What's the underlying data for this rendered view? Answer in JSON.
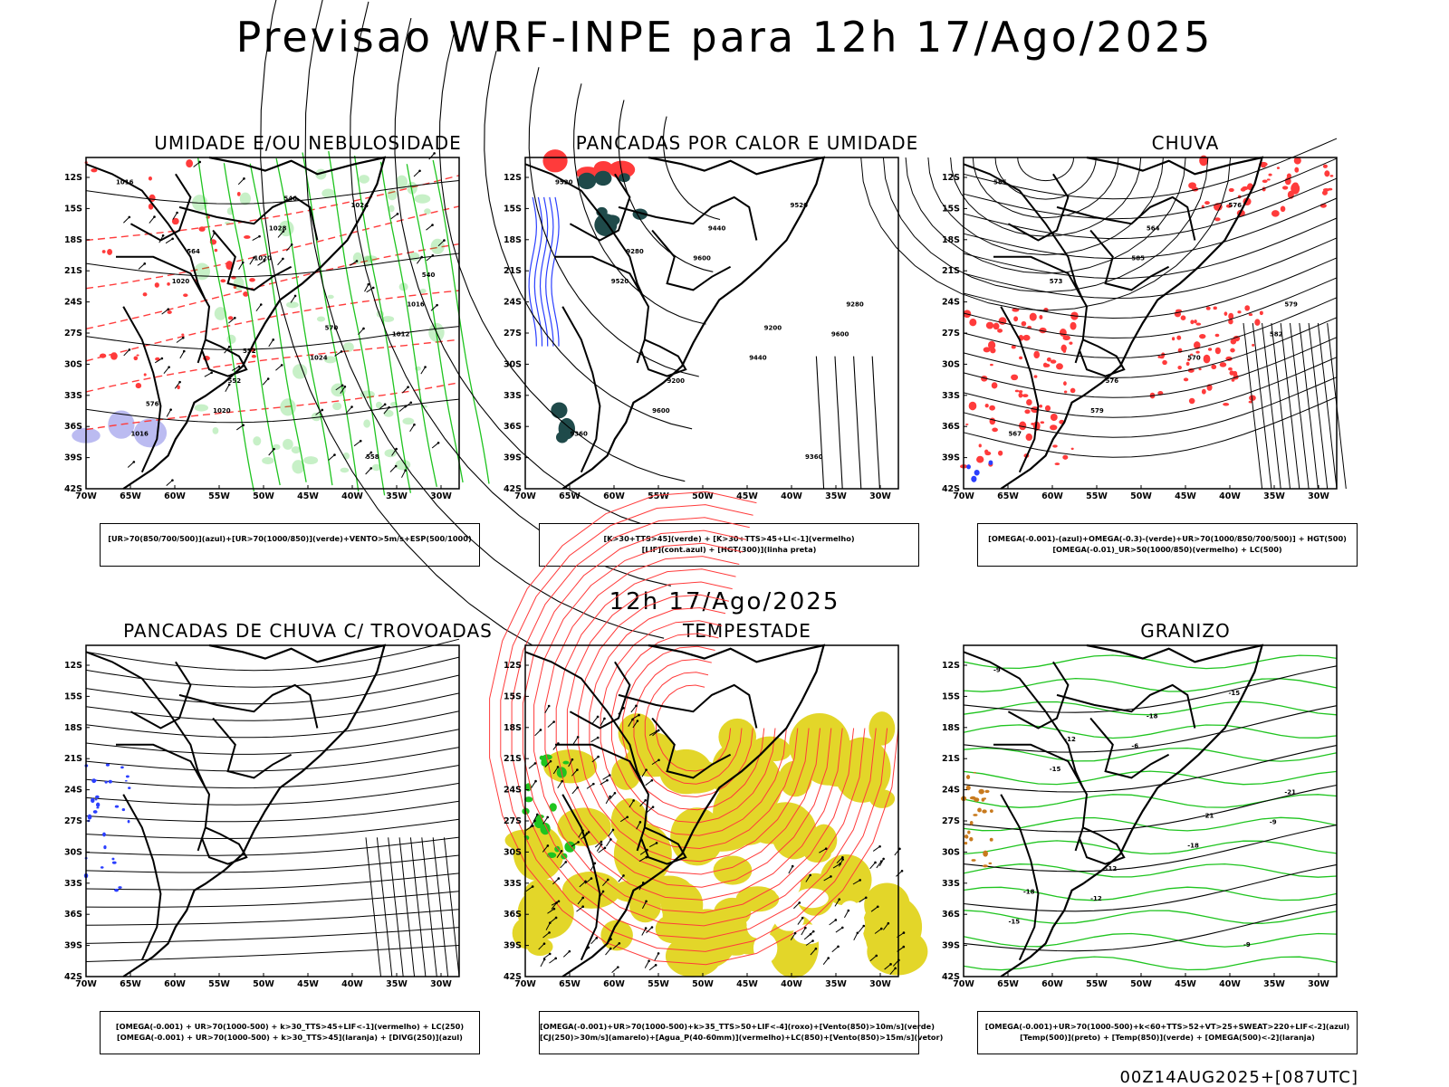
{
  "title": "Previsao WRF-INPE  para 12h 17/Ago/2025",
  "mid_title": "12h 17/Ago/2025",
  "footer": "00Z14AUG2025+[087UTC]",
  "axes": {
    "lat_labels": [
      "12S",
      "15S",
      "18S",
      "21S",
      "24S",
      "27S",
      "30S",
      "33S",
      "36S",
      "39S",
      "42S"
    ],
    "lon_labels": [
      "70W",
      "65W",
      "60W",
      "55W",
      "50W",
      "45W",
      "40W",
      "35W",
      "30W"
    ]
  },
  "colors": {
    "frame": "#000000",
    "green": "#1fc41f",
    "red": "#ff3b3b",
    "blue": "#2b3fff",
    "lavender": "#b4b4f0",
    "yellow": "#e3d629",
    "teal": "#1f4a4a",
    "orange": "#c87a1e"
  },
  "panels": [
    {
      "id": "umidade",
      "title": "UMIDADE E/OU NEBULOSIDADE",
      "legend": [
        "[UR>70(850/700/500)](azul)+[UR>70(1000/850)](verde)+VENTO>5m/s+ESP(500/1000)"
      ],
      "contour_labels": [
        "1016",
        "1020",
        "1012",
        "1020",
        "1024",
        "1020",
        "1024",
        "1016",
        "1028",
        "1016",
        "552",
        "558",
        "564",
        "570",
        "576",
        "546",
        "540",
        "552"
      ]
    },
    {
      "id": "pancadas-calor",
      "title": "PANCADAS POR CALOR E UMIDADE",
      "legend": [
        "[K>30+TTS>45](verde) + [K>30+TTS>45+LI<-1](vermelho)",
        "[LIF](cont.azul) + [HGT(300)](linha preta)"
      ],
      "contour_labels": [
        "9520",
        "9600",
        "9600",
        "9600",
        "9520",
        "9520",
        "9440",
        "9360",
        "9440",
        "9280",
        "9200",
        "9360",
        "9280",
        "9200"
      ]
    },
    {
      "id": "chuva",
      "title": "CHUVA",
      "legend": [
        "[OMEGA(-0.001)-(azul)+OMEGA(-0.3)-(verde)+UR>70(1000/850/700/500)] + HGT(500)",
        "[OMEGA(-0.01)_UR>50(1000/850)(vermelho) + LC(500)"
      ],
      "contour_labels": [
        "585",
        "585",
        "582",
        "579",
        "576",
        "573",
        "570",
        "567",
        "564",
        "579",
        "576"
      ]
    },
    {
      "id": "pancadas-trovoadas",
      "title": "PANCADAS DE CHUVA C/ TROVOADAS",
      "legend": [
        "[OMEGA(-0.001) + UR>70(1000-500) + k>30_TTS>45+LIF<-1](vermelho) + LC(250)",
        "[OMEGA(-0.001) + UR>70(1000-500) + k>30_TTS>45](laranja) + [DIVG(250)](azul)"
      ]
    },
    {
      "id": "tempestade",
      "title": "TEMPESTADE",
      "legend": [
        "[OMEGA(-0.001)+UR>70(1000-500)+k>35_TTS>50+LIF<-4](roxo)+[Vento(850)>10m/s](verde)",
        "[CJ(250)>30m/s](amarelo)+[Agua_P(40-60mm)](vermelho)+LC(850)+[Vento(850)>15m/s](vetor)"
      ]
    },
    {
      "id": "granizo",
      "title": "GRANIZO",
      "legend": [
        "[OMEGA(-0.001)+UR>70(1000-500)+k<60+TTS>52+VT>25+SWEAT>220+LIF<-2](azul)",
        "[Temp(500)](preto) + [Temp(850)](verde) + [OMEGA(500)<-2](laranja)"
      ],
      "contour_labels": [
        "-9",
        "-6",
        "-9",
        "-12",
        "-15",
        "-15",
        "-18",
        "-15",
        "-18",
        "-21",
        "-12",
        "-9",
        "-12",
        "-21",
        "-18"
      ]
    }
  ]
}
